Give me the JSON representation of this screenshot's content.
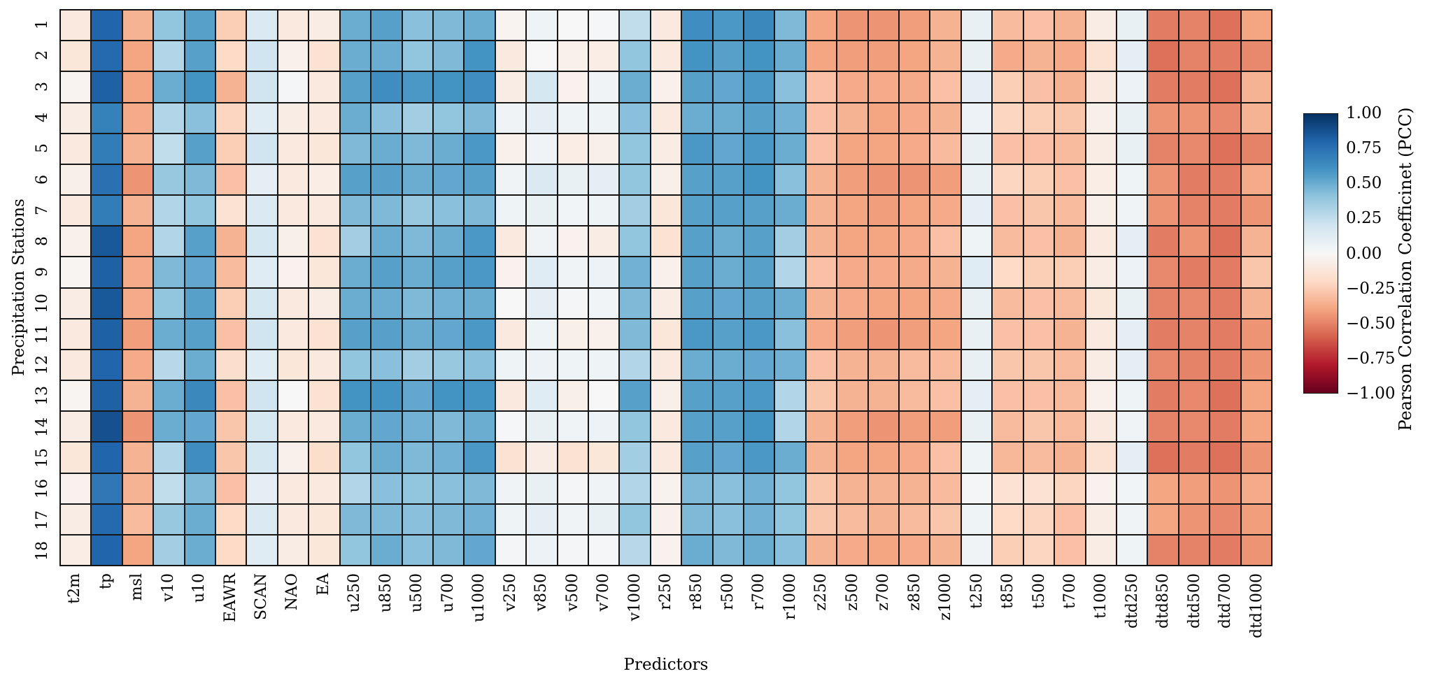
{
  "figure": {
    "xlabel": "Predictors",
    "ylabel": "Precipitation Stations",
    "colorbar_label": "Pearson Correlation Coefficinet (PCC)",
    "colorbar_ticks": [
      "1.00",
      "0.75",
      "0.50",
      "0.25",
      "0.00",
      "−0.25",
      "−0.50",
      "−0.75",
      "−1.00"
    ]
  },
  "chart_data": {
    "type": "heatmap",
    "title": "",
    "xlabel": "Predictors",
    "ylabel": "Precipitation Stations",
    "legend_label": "Pearson Correlation Coefficinet (PCC)",
    "vmin": -1.0,
    "vmax": 1.0,
    "colormap": "RdBu",
    "colormap_anchors": [
      "#67001f",
      "#b2182b",
      "#d6604d",
      "#f4a582",
      "#fddbc7",
      "#f7f7f7",
      "#d1e5f0",
      "#92c5de",
      "#4393c3",
      "#2166ac",
      "#053061"
    ],
    "gridline_color": "#161616",
    "x_categories": [
      "t2m",
      "tp",
      "msl",
      "v10",
      "u10",
      "EAWR",
      "SCAN",
      "NAO",
      "EA",
      "u250",
      "u850",
      "u500",
      "u700",
      "u1000",
      "v250",
      "v850",
      "v500",
      "v700",
      "v1000",
      "r250",
      "r850",
      "r500",
      "r700",
      "r1000",
      "z250",
      "z500",
      "z700",
      "z850",
      "z1000",
      "t250",
      "t850",
      "t500",
      "t700",
      "t1000",
      "dtd250",
      "dtd850",
      "dtd500",
      "dtd700",
      "dtd1000"
    ],
    "y_categories": [
      "1",
      "2",
      "3",
      "4",
      "5",
      "6",
      "7",
      "8",
      "9",
      "10",
      "11",
      "12",
      "13",
      "14",
      "15",
      "16",
      "17",
      "18"
    ],
    "values": [
      [
        -0.1,
        0.8,
        -0.35,
        0.4,
        0.55,
        -0.25,
        0.15,
        -0.1,
        -0.08,
        0.5,
        0.55,
        0.42,
        0.45,
        0.5,
        -0.03,
        0.05,
        0.0,
        0.01,
        0.25,
        -0.1,
        0.62,
        0.58,
        0.65,
        0.45,
        -0.4,
        -0.45,
        -0.45,
        -0.42,
        -0.35,
        0.08,
        -0.32,
        -0.3,
        -0.35,
        -0.08,
        0.08,
        -0.52,
        -0.5,
        -0.55,
        -0.4
      ],
      [
        -0.12,
        0.78,
        -0.4,
        0.3,
        0.55,
        -0.2,
        0.2,
        -0.05,
        -0.15,
        0.5,
        0.5,
        0.4,
        0.45,
        0.6,
        -0.1,
        0.0,
        -0.05,
        -0.07,
        0.4,
        -0.1,
        0.6,
        0.55,
        0.6,
        0.5,
        -0.4,
        -0.42,
        -0.42,
        -0.4,
        -0.35,
        0.08,
        -0.38,
        -0.35,
        -0.38,
        -0.15,
        0.1,
        -0.55,
        -0.5,
        -0.52,
        -0.48
      ],
      [
        -0.03,
        0.82,
        -0.4,
        0.5,
        0.6,
        -0.35,
        0.2,
        0.02,
        -0.1,
        0.55,
        0.62,
        0.58,
        0.6,
        0.62,
        -0.08,
        0.18,
        -0.04,
        0.04,
        0.5,
        -0.05,
        0.55,
        0.52,
        0.58,
        0.42,
        -0.3,
        -0.38,
        -0.38,
        -0.38,
        -0.3,
        0.1,
        -0.25,
        -0.3,
        -0.35,
        -0.1,
        0.06,
        -0.52,
        -0.52,
        -0.55,
        -0.35
      ],
      [
        -0.08,
        0.68,
        -0.38,
        0.3,
        0.42,
        -0.22,
        0.12,
        -0.08,
        -0.1,
        0.5,
        0.42,
        0.35,
        0.4,
        0.45,
        0.04,
        0.1,
        0.05,
        0.05,
        0.42,
        -0.1,
        0.5,
        0.5,
        0.55,
        0.48,
        -0.3,
        -0.35,
        -0.4,
        -0.38,
        -0.35,
        0.06,
        -0.22,
        -0.25,
        -0.28,
        -0.06,
        0.08,
        -0.45,
        -0.45,
        -0.48,
        -0.35
      ],
      [
        -0.1,
        0.7,
        -0.35,
        0.25,
        0.55,
        -0.25,
        0.2,
        -0.1,
        -0.12,
        0.45,
        0.5,
        0.45,
        0.5,
        0.58,
        -0.05,
        0.04,
        -0.07,
        -0.06,
        0.4,
        -0.08,
        0.58,
        0.52,
        0.58,
        0.5,
        -0.3,
        -0.4,
        -0.4,
        -0.38,
        -0.32,
        0.08,
        -0.3,
        -0.3,
        -0.32,
        -0.08,
        0.08,
        -0.5,
        -0.48,
        -0.55,
        -0.5
      ],
      [
        -0.06,
        0.75,
        -0.45,
        0.38,
        0.45,
        -0.3,
        0.1,
        -0.1,
        -0.07,
        0.55,
        0.55,
        0.5,
        0.52,
        0.55,
        0.04,
        0.15,
        0.08,
        0.1,
        0.4,
        -0.06,
        0.55,
        0.55,
        0.6,
        0.42,
        -0.35,
        -0.42,
        -0.45,
        -0.45,
        -0.42,
        0.08,
        -0.22,
        -0.25,
        -0.3,
        -0.07,
        0.05,
        -0.45,
        -0.52,
        -0.52,
        -0.38
      ],
      [
        -0.1,
        0.7,
        -0.35,
        0.3,
        0.4,
        -0.15,
        0.15,
        -0.1,
        -0.1,
        0.45,
        0.45,
        0.38,
        0.42,
        0.45,
        0.05,
        0.08,
        0.03,
        0.05,
        0.35,
        -0.12,
        0.55,
        0.55,
        0.55,
        0.5,
        -0.35,
        -0.4,
        -0.42,
        -0.4,
        -0.38,
        0.1,
        -0.3,
        -0.28,
        -0.32,
        -0.06,
        0.04,
        -0.45,
        -0.5,
        -0.52,
        -0.45
      ],
      [
        -0.05,
        0.85,
        -0.4,
        0.3,
        0.55,
        -0.35,
        0.18,
        -0.06,
        -0.15,
        0.35,
        0.5,
        0.45,
        0.5,
        0.58,
        -0.1,
        0.04,
        -0.04,
        -0.08,
        0.4,
        -0.15,
        0.55,
        0.5,
        0.55,
        0.35,
        -0.35,
        -0.4,
        -0.4,
        -0.38,
        -0.3,
        0.05,
        -0.32,
        -0.3,
        -0.35,
        -0.1,
        0.1,
        -0.52,
        -0.45,
        -0.55,
        -0.35
      ],
      [
        -0.02,
        0.82,
        -0.38,
        0.45,
        0.52,
        -0.32,
        0.12,
        -0.04,
        -0.12,
        0.5,
        0.55,
        0.5,
        0.55,
        0.58,
        -0.04,
        0.12,
        0.04,
        0.06,
        0.48,
        -0.05,
        0.55,
        0.5,
        0.55,
        0.3,
        -0.3,
        -0.38,
        -0.38,
        -0.38,
        -0.35,
        0.12,
        -0.2,
        -0.25,
        -0.25,
        -0.08,
        0.06,
        -0.48,
        -0.52,
        -0.52,
        -0.28
      ],
      [
        -0.08,
        0.85,
        -0.38,
        0.4,
        0.55,
        -0.25,
        0.18,
        -0.1,
        -0.08,
        0.5,
        0.5,
        0.45,
        0.48,
        0.5,
        0.0,
        0.1,
        0.02,
        0.03,
        0.45,
        -0.08,
        0.55,
        0.52,
        0.55,
        0.5,
        -0.35,
        -0.38,
        -0.4,
        -0.4,
        -0.38,
        0.08,
        -0.32,
        -0.3,
        -0.32,
        -0.12,
        0.08,
        -0.5,
        -0.48,
        -0.52,
        -0.35
      ],
      [
        -0.1,
        0.82,
        -0.42,
        0.5,
        0.55,
        -0.3,
        0.2,
        -0.1,
        -0.15,
        0.55,
        0.55,
        0.5,
        0.52,
        0.58,
        -0.1,
        0.05,
        -0.06,
        -0.05,
        0.45,
        -0.12,
        0.58,
        0.55,
        0.58,
        0.42,
        -0.38,
        -0.42,
        -0.45,
        -0.42,
        -0.4,
        0.08,
        -0.3,
        -0.3,
        -0.35,
        -0.1,
        0.1,
        -0.52,
        -0.5,
        -0.52,
        -0.45
      ],
      [
        -0.1,
        0.8,
        -0.38,
        0.28,
        0.5,
        -0.18,
        0.12,
        -0.12,
        -0.1,
        0.4,
        0.42,
        0.35,
        0.38,
        0.42,
        0.05,
        0.06,
        0.05,
        0.05,
        0.3,
        -0.1,
        0.5,
        0.5,
        0.52,
        0.48,
        -0.3,
        -0.35,
        -0.35,
        -0.32,
        -0.32,
        0.08,
        -0.28,
        -0.28,
        -0.32,
        -0.08,
        0.1,
        -0.48,
        -0.5,
        -0.52,
        -0.45
      ],
      [
        -0.02,
        0.82,
        -0.35,
        0.5,
        0.65,
        -0.3,
        0.2,
        0.0,
        -0.15,
        0.6,
        0.6,
        0.52,
        0.6,
        0.6,
        -0.1,
        0.12,
        -0.06,
        0.0,
        0.55,
        -0.06,
        0.55,
        0.55,
        0.58,
        0.3,
        -0.28,
        -0.35,
        -0.35,
        -0.32,
        -0.3,
        0.1,
        -0.3,
        -0.3,
        -0.32,
        -0.05,
        0.05,
        -0.52,
        -0.48,
        -0.55,
        -0.4
      ],
      [
        -0.08,
        0.88,
        -0.45,
        0.5,
        0.52,
        -0.28,
        0.18,
        -0.1,
        -0.1,
        0.5,
        0.52,
        0.48,
        0.45,
        0.5,
        0.01,
        0.08,
        0.04,
        0.06,
        0.4,
        -0.1,
        0.55,
        0.55,
        0.6,
        0.3,
        -0.35,
        -0.42,
        -0.45,
        -0.42,
        -0.42,
        0.08,
        -0.32,
        -0.28,
        -0.32,
        -0.1,
        0.04,
        -0.5,
        -0.48,
        -0.52,
        -0.4
      ],
      [
        -0.12,
        0.8,
        -0.35,
        0.3,
        0.62,
        -0.28,
        0.18,
        -0.05,
        -0.18,
        0.4,
        0.5,
        0.45,
        0.48,
        0.58,
        -0.15,
        -0.08,
        -0.15,
        -0.12,
        0.35,
        -0.1,
        0.55,
        0.52,
        0.58,
        0.5,
        -0.35,
        -0.4,
        -0.4,
        -0.38,
        -0.3,
        0.05,
        -0.33,
        -0.32,
        -0.35,
        -0.15,
        0.1,
        -0.55,
        -0.52,
        -0.55,
        -0.45
      ],
      [
        -0.04,
        0.72,
        -0.35,
        0.25,
        0.45,
        -0.3,
        0.1,
        -0.1,
        -0.1,
        0.3,
        0.42,
        0.4,
        0.42,
        0.45,
        0.04,
        0.08,
        0.02,
        0.04,
        0.3,
        -0.04,
        0.45,
        0.42,
        0.48,
        0.4,
        -0.28,
        -0.35,
        -0.35,
        -0.35,
        -0.32,
        0.02,
        -0.15,
        -0.15,
        -0.22,
        -0.04,
        0.03,
        -0.4,
        -0.42,
        -0.45,
        -0.38
      ],
      [
        -0.08,
        0.78,
        -0.32,
        0.38,
        0.5,
        -0.2,
        0.15,
        -0.1,
        -0.12,
        0.45,
        0.45,
        0.42,
        0.45,
        0.48,
        0.05,
        0.1,
        0.04,
        0.08,
        0.4,
        -0.05,
        0.45,
        0.42,
        0.48,
        0.4,
        -0.28,
        -0.32,
        -0.35,
        -0.32,
        -0.28,
        0.05,
        -0.2,
        -0.22,
        -0.3,
        -0.08,
        0.04,
        -0.4,
        -0.45,
        -0.48,
        -0.42
      ],
      [
        -0.07,
        0.8,
        -0.4,
        0.35,
        0.5,
        -0.2,
        0.12,
        -0.08,
        -0.12,
        0.4,
        0.5,
        0.42,
        0.45,
        0.52,
        0.02,
        0.06,
        0.02,
        0.01,
        0.28,
        -0.04,
        0.5,
        0.45,
        0.5,
        0.42,
        -0.35,
        -0.38,
        -0.4,
        -0.38,
        -0.35,
        0.04,
        -0.25,
        -0.22,
        -0.3,
        -0.08,
        0.05,
        -0.5,
        -0.5,
        -0.52,
        -0.45
      ]
    ]
  }
}
